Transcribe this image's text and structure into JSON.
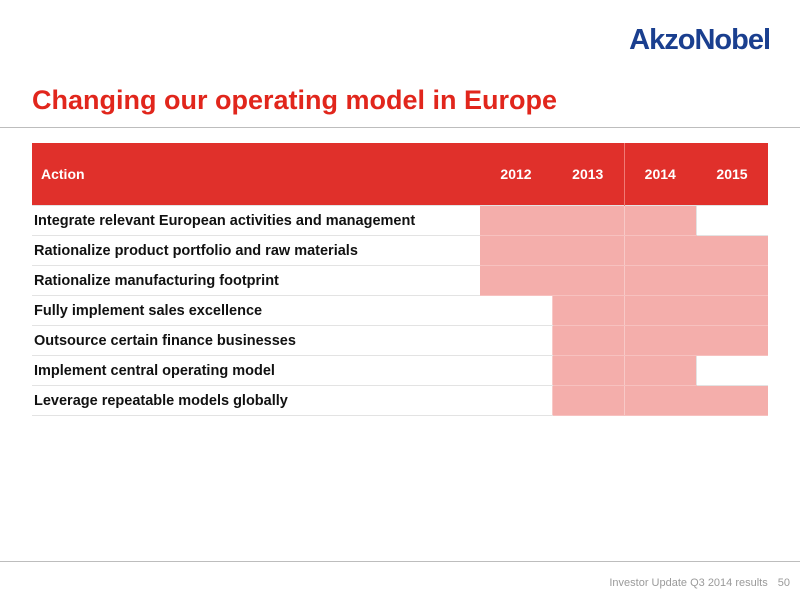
{
  "brand": {
    "logo_text": "AkzoNobel",
    "logo_color": "#1a3f8f",
    "accent_red": "#e0302b",
    "bar_fill": "#f4aeab"
  },
  "slide": {
    "title": "Changing our operating model in Europe"
  },
  "table": {
    "header_action": "Action",
    "years": [
      "2012",
      "2013",
      "2014",
      "2015"
    ],
    "rows": [
      {
        "label": "Integrate relevant European activities and management",
        "active": [
          true,
          true,
          true,
          false
        ]
      },
      {
        "label": "Rationalize product portfolio and raw materials",
        "active": [
          true,
          true,
          true,
          true
        ]
      },
      {
        "label": "Rationalize manufacturing footprint",
        "active": [
          true,
          true,
          true,
          true
        ]
      },
      {
        "label": "Fully implement sales excellence",
        "active": [
          false,
          true,
          true,
          true
        ]
      },
      {
        "label": "Outsource certain finance businesses",
        "active": [
          false,
          true,
          true,
          true
        ]
      },
      {
        "label": "Implement central operating model",
        "active": [
          false,
          true,
          true,
          false
        ]
      },
      {
        "label": "Leverage repeatable models globally",
        "active": [
          false,
          true,
          true,
          true
        ]
      }
    ]
  },
  "footer": {
    "text": "Investor Update Q3 2014 results",
    "page_number": "50"
  }
}
